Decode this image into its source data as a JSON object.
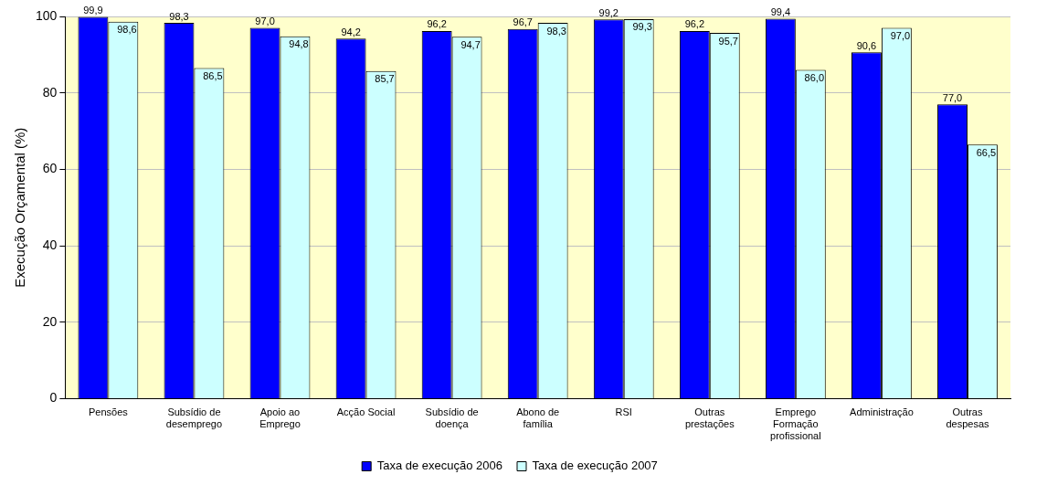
{
  "chart_data": {
    "type": "bar",
    "ylabel": "Execução Orçamental (%)",
    "categories": [
      "Pensões",
      "Subsídio de desemprego",
      "Apoio ao Emprego",
      "Acção Social",
      "Subsídio de doença",
      "Abono de família",
      "RSI",
      "Outras prestações",
      "Emprego Formação profissional",
      "Administração",
      "Outras despesas"
    ],
    "series": [
      {
        "name": "Taxa de execução 2006",
        "color": "#0000ff",
        "values": [
          99.9,
          98.3,
          97.0,
          94.2,
          96.2,
          96.7,
          99.2,
          96.2,
          99.4,
          90.6,
          77.0
        ],
        "value_labels": [
          "99,9",
          "98,3",
          "97,0",
          "94,2",
          "96,2",
          "96,7",
          "99,2",
          "96,2",
          "99,4",
          "90,6",
          "77,0"
        ]
      },
      {
        "name": "Taxa de execução 2007",
        "color": "#ccffff",
        "values": [
          98.6,
          86.5,
          94.8,
          85.7,
          94.7,
          98.3,
          99.3,
          95.7,
          86.0,
          97.0,
          66.5
        ],
        "value_labels": [
          "98,6",
          "86,5",
          "94,8",
          "85,7",
          "94,7",
          "98,3",
          "99,3",
          "95,7",
          "86,0",
          "97,0",
          "66,5"
        ]
      }
    ],
    "ylim": [
      0,
      100
    ],
    "yticks": [
      0,
      20,
      40,
      60,
      80,
      100
    ],
    "grid": "y",
    "legend": "bottom"
  }
}
